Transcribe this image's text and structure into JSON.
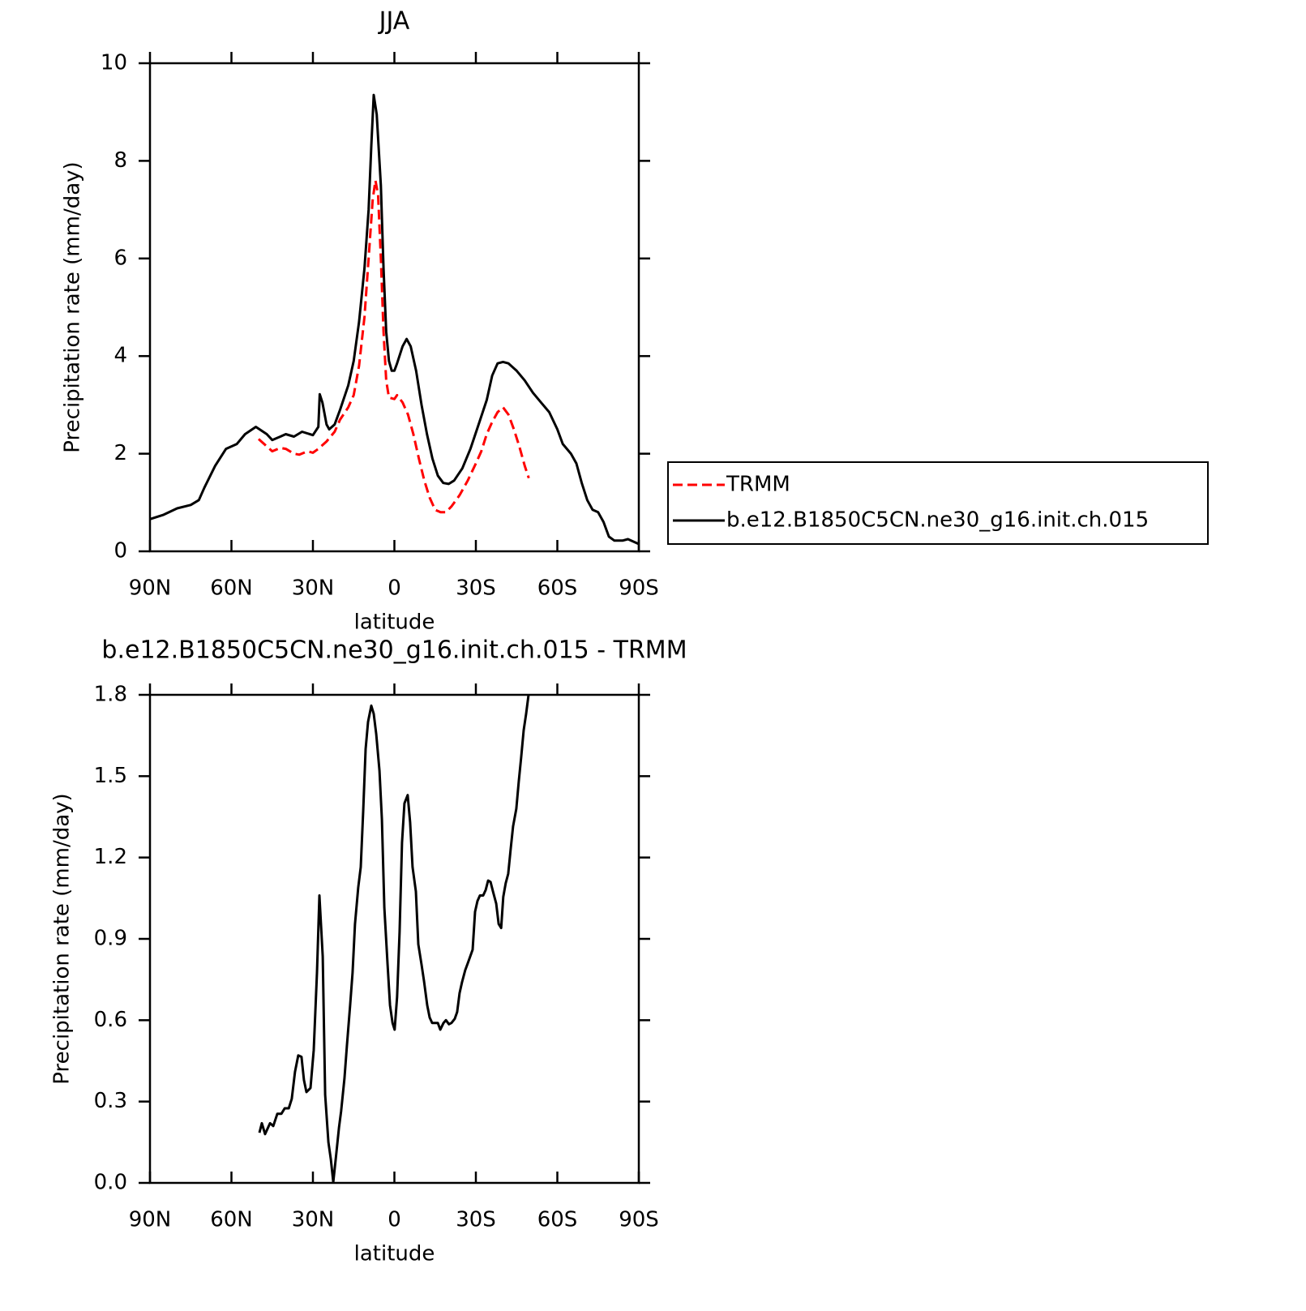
{
  "chart_data": [
    {
      "type": "line",
      "title": "JJA",
      "xlabel": "latitude",
      "ylabel": "Precipitation rate (mm/day)",
      "xlim": [
        90,
        -90
      ],
      "xticks": [
        {
          "value": 90,
          "label": "90N"
        },
        {
          "value": 60,
          "label": "60N"
        },
        {
          "value": 30,
          "label": "30N"
        },
        0,
        {
          "value": -30,
          "label": "30S"
        },
        {
          "value": -60,
          "label": "60S"
        },
        {
          "value": -90,
          "label": "90S"
        }
      ],
      "ylim": [
        0,
        10
      ],
      "yticks": [
        0,
        2,
        4,
        6,
        8,
        10
      ],
      "legend": "right",
      "series": [
        {
          "name": "TRMM",
          "color": "#ff0000",
          "linestyle": "dashed",
          "x": [
            50,
            47,
            45,
            42,
            40,
            37,
            35,
            32,
            30,
            28,
            25,
            22,
            20,
            17,
            15,
            13,
            11,
            9.5,
            8,
            7,
            6,
            5,
            4,
            3,
            2,
            0,
            -1,
            -3,
            -5,
            -7,
            -9,
            -11,
            -13,
            -15,
            -17,
            -19,
            -21,
            -24,
            -27,
            -30,
            -32,
            -34,
            -36,
            -38,
            -40,
            -42,
            -44,
            -46,
            -48,
            -49.5
          ],
          "values": [
            2.3,
            2.15,
            2.05,
            2.12,
            2.1,
            2.0,
            1.98,
            2.05,
            2.02,
            2.1,
            2.25,
            2.45,
            2.7,
            2.95,
            3.2,
            3.8,
            4.8,
            6.0,
            7.2,
            7.6,
            7.3,
            6.0,
            4.5,
            3.5,
            3.15,
            3.12,
            3.2,
            3.05,
            2.8,
            2.4,
            1.9,
            1.45,
            1.1,
            0.85,
            0.8,
            0.8,
            0.92,
            1.15,
            1.45,
            1.8,
            2.05,
            2.4,
            2.65,
            2.85,
            2.95,
            2.8,
            2.5,
            2.15,
            1.75,
            1.5
          ]
        },
        {
          "name": "b.e12.B1850C5CN.ne30_g16.init.ch.015",
          "color": "#000000",
          "linestyle": "solid",
          "x": [
            90,
            85,
            80,
            75,
            72,
            70,
            66,
            62,
            58,
            55,
            51,
            47,
            45,
            42,
            40,
            37,
            34,
            30,
            28,
            27.5,
            26.5,
            25,
            24,
            22,
            20,
            17,
            15,
            13,
            11,
            9.5,
            8.5,
            7.6,
            6.5,
            5,
            4,
            3,
            2,
            1,
            0,
            -1,
            -3,
            -4.5,
            -6,
            -8,
            -10,
            -12,
            -14,
            -16,
            -18,
            -20,
            -22,
            -25,
            -28,
            -31,
            -34,
            -36,
            -38,
            -40,
            -42,
            -45,
            -48,
            -51,
            -54,
            -57,
            -60,
            -62,
            -65,
            -67,
            -69,
            -71,
            -73,
            -75,
            -77,
            -79,
            -81,
            -84,
            -86,
            -88,
            -90
          ],
          "values": [
            0.66,
            0.75,
            0.88,
            0.95,
            1.05,
            1.3,
            1.75,
            2.1,
            2.2,
            2.4,
            2.55,
            2.4,
            2.28,
            2.35,
            2.4,
            2.35,
            2.45,
            2.38,
            2.55,
            3.22,
            3.05,
            2.6,
            2.5,
            2.6,
            2.9,
            3.4,
            3.9,
            4.7,
            5.8,
            7.0,
            8.3,
            9.35,
            8.95,
            7.5,
            5.8,
            4.5,
            3.9,
            3.7,
            3.7,
            3.85,
            4.2,
            4.35,
            4.2,
            3.7,
            3.0,
            2.4,
            1.9,
            1.55,
            1.4,
            1.38,
            1.45,
            1.7,
            2.1,
            2.6,
            3.1,
            3.6,
            3.85,
            3.88,
            3.85,
            3.7,
            3.5,
            3.25,
            3.05,
            2.85,
            2.5,
            2.2,
            2.0,
            1.8,
            1.4,
            1.05,
            0.85,
            0.8,
            0.6,
            0.3,
            0.22,
            0.22,
            0.25,
            0.2,
            0.15
          ]
        }
      ]
    },
    {
      "type": "line",
      "title": "b.e12.B1850C5CN.ne30_g16.init.ch.015 - TRMM",
      "xlabel": "latitude",
      "ylabel": "Precipitation rate (mm/day)",
      "xlim": [
        90,
        -90
      ],
      "xticks": [
        {
          "value": 90,
          "label": "90N"
        },
        {
          "value": 60,
          "label": "60N"
        },
        {
          "value": 30,
          "label": "30N"
        },
        0,
        {
          "value": -30,
          "label": "30S"
        },
        {
          "value": -60,
          "label": "60S"
        },
        {
          "value": -90,
          "label": "90S"
        }
      ],
      "ylim": [
        0,
        1.8
      ],
      "yticks": [
        {
          "value": 0,
          "label": "0.0"
        },
        0.3,
        0.6,
        0.9,
        1.2,
        1.5,
        1.8
      ],
      "series": [
        {
          "color": "#000000",
          "linestyle": "solid",
          "x": [
            49.7,
            48.8,
            47.6,
            45.8,
            44.6,
            43.1,
            41.6,
            40.4,
            38.9,
            37.8,
            36.6,
            35.4,
            34.2,
            33.3,
            32.4,
            30.9,
            29.7,
            28.5,
            27.6,
            26.4,
            25.5,
            24.3,
            23.4,
            22.5,
            21.6,
            20.4,
            19.6,
            18.4,
            17.5,
            16.3,
            15.4,
            14.5,
            13.3,
            12.4,
            11.5,
            10.6,
            9.7,
            8.5,
            7.6,
            6.7,
            5.5,
            4.6,
            3.7,
            2.5,
            1.6,
            0.7,
            -0.1,
            -1.0,
            -1.9,
            -2.8,
            -3.7,
            -4.9,
            -5.8,
            -6.7,
            -7.9,
            -8.8,
            -10.0,
            -10.9,
            -12.1,
            -13.0,
            -13.9,
            -14.8,
            -16.0,
            -16.9,
            -18.1,
            -19.0,
            -20.1,
            -21.0,
            -22.2,
            -23.1,
            -24.0,
            -24.9,
            -26.1,
            -27.0,
            -27.9,
            -28.8,
            -29.7,
            -30.6,
            -31.5,
            -32.7,
            -33.6,
            -34.5,
            -35.4,
            -36.3,
            -37.5,
            -38.4,
            -39.3,
            -40.1,
            -41.0,
            -41.9,
            -42.8,
            -43.7,
            -44.9,
            -45.8,
            -46.7,
            -47.6,
            -48.5,
            -49.4
          ],
          "values": [
            0.185,
            0.22,
            0.18,
            0.22,
            0.21,
            0.255,
            0.255,
            0.275,
            0.275,
            0.31,
            0.41,
            0.47,
            0.465,
            0.38,
            0.335,
            0.35,
            0.49,
            0.775,
            1.06,
            0.835,
            0.325,
            0.15,
            0.087,
            0.003,
            0.087,
            0.205,
            0.265,
            0.385,
            0.505,
            0.655,
            0.775,
            0.955,
            1.09,
            1.165,
            1.37,
            1.6,
            1.7,
            1.76,
            1.73,
            1.655,
            1.52,
            1.34,
            1.015,
            0.805,
            0.655,
            0.59,
            0.565,
            0.685,
            0.925,
            1.255,
            1.4,
            1.43,
            1.33,
            1.165,
            1.075,
            0.88,
            0.805,
            0.745,
            0.655,
            0.61,
            0.59,
            0.59,
            0.59,
            0.565,
            0.59,
            0.6,
            0.585,
            0.59,
            0.605,
            0.63,
            0.7,
            0.74,
            0.785,
            0.81,
            0.835,
            0.86,
            1.0,
            1.04,
            1.06,
            1.06,
            1.08,
            1.115,
            1.11,
            1.075,
            1.03,
            0.955,
            0.94,
            1.055,
            1.105,
            1.14,
            1.23,
            1.315,
            1.38,
            1.48,
            1.57,
            1.67,
            1.73,
            1.8
          ]
        }
      ]
    }
  ]
}
